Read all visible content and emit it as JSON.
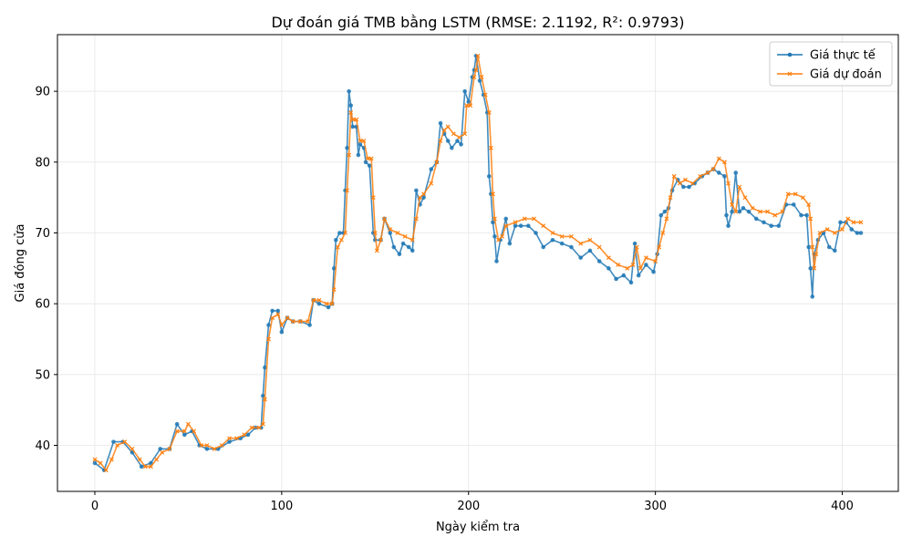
{
  "chart_data": {
    "type": "line",
    "title": "Dự đoán giá TMB bằng LSTM (RMSE: 2.1192, R²: 0.9793)",
    "xlabel": "Ngày kiểm tra",
    "ylabel": "Giá đóng cửa",
    "xlim": [
      -20,
      430
    ],
    "ylim": [
      33.5,
      98
    ],
    "xticks": [
      0,
      100,
      200,
      300,
      400
    ],
    "yticks": [
      40,
      50,
      60,
      70,
      80,
      90
    ],
    "grid": true,
    "legend_position": "top-right",
    "series": [
      {
        "name": "Giá thực tế",
        "color": "#1f77b4",
        "marker": "circle",
        "points": [
          [
            0,
            37.5
          ],
          [
            5,
            36.5
          ],
          [
            10,
            40.5
          ],
          [
            15,
            40.5
          ],
          [
            20,
            39
          ],
          [
            25,
            37
          ],
          [
            30,
            37.5
          ],
          [
            35,
            39.5
          ],
          [
            40,
            39.5
          ],
          [
            44,
            43
          ],
          [
            48,
            41.5
          ],
          [
            52,
            42
          ],
          [
            56,
            40
          ],
          [
            60,
            39.5
          ],
          [
            66,
            39.5
          ],
          [
            72,
            40.5
          ],
          [
            78,
            41
          ],
          [
            82,
            41.5
          ],
          [
            86,
            42.5
          ],
          [
            89,
            42.5
          ],
          [
            90,
            47
          ],
          [
            91,
            51
          ],
          [
            93,
            57
          ],
          [
            95,
            59
          ],
          [
            98,
            59
          ],
          [
            100,
            56
          ],
          [
            103,
            58
          ],
          [
            106,
            57.5
          ],
          [
            110,
            57.5
          ],
          [
            115,
            57
          ],
          [
            117,
            60.5
          ],
          [
            120,
            60
          ],
          [
            125,
            59.5
          ],
          [
            127,
            60
          ],
          [
            128,
            65
          ],
          [
            129,
            69
          ],
          [
            131,
            70
          ],
          [
            133,
            70
          ],
          [
            134,
            76
          ],
          [
            135,
            82
          ],
          [
            136,
            90
          ],
          [
            137,
            88
          ],
          [
            138,
            85
          ],
          [
            140,
            85
          ],
          [
            141,
            81
          ],
          [
            142,
            82.5
          ],
          [
            144,
            82
          ],
          [
            145,
            80
          ],
          [
            147,
            79.5
          ],
          [
            149,
            70
          ],
          [
            150,
            69
          ],
          [
            153,
            69
          ],
          [
            155,
            72
          ],
          [
            158,
            70
          ],
          [
            160,
            68
          ],
          [
            163,
            67
          ],
          [
            165,
            68.5
          ],
          [
            168,
            68
          ],
          [
            170,
            67.5
          ],
          [
            172,
            76
          ],
          [
            174,
            74
          ],
          [
            176,
            75
          ],
          [
            180,
            79
          ],
          [
            183,
            80
          ],
          [
            185,
            85.5
          ],
          [
            187,
            84
          ],
          [
            189,
            83
          ],
          [
            191,
            82
          ],
          [
            194,
            83
          ],
          [
            196,
            82.5
          ],
          [
            198,
            90
          ],
          [
            200,
            88.5
          ],
          [
            202,
            92
          ],
          [
            203,
            93
          ],
          [
            204,
            95
          ],
          [
            206,
            91.5
          ],
          [
            208,
            89.5
          ],
          [
            210,
            87
          ],
          [
            211,
            78
          ],
          [
            212,
            75.5
          ],
          [
            213,
            71.5
          ],
          [
            214,
            69.5
          ],
          [
            215,
            66
          ],
          [
            217,
            69
          ],
          [
            220,
            72
          ],
          [
            222,
            68.5
          ],
          [
            225,
            71
          ],
          [
            228,
            71
          ],
          [
            232,
            71
          ],
          [
            236,
            70
          ],
          [
            240,
            68
          ],
          [
            245,
            69
          ],
          [
            250,
            68.5
          ],
          [
            255,
            68
          ],
          [
            260,
            66.5
          ],
          [
            265,
            67.5
          ],
          [
            270,
            66
          ],
          [
            275,
            65
          ],
          [
            279,
            63.5
          ],
          [
            283,
            64
          ],
          [
            287,
            63
          ],
          [
            289,
            68.5
          ],
          [
            291,
            64
          ],
          [
            295,
            65.5
          ],
          [
            299,
            64.5
          ],
          [
            301,
            67
          ],
          [
            303,
            72.5
          ],
          [
            305,
            73
          ],
          [
            307,
            73.5
          ],
          [
            309,
            76
          ],
          [
            312,
            77.5
          ],
          [
            315,
            76.5
          ],
          [
            318,
            76.5
          ],
          [
            321,
            77
          ],
          [
            325,
            78
          ],
          [
            328,
            78.5
          ],
          [
            331,
            79
          ],
          [
            334,
            78.5
          ],
          [
            337,
            78
          ],
          [
            338,
            72.5
          ],
          [
            339,
            71
          ],
          [
            341,
            73
          ],
          [
            343,
            78.5
          ],
          [
            345,
            73
          ],
          [
            347,
            73.5
          ],
          [
            350,
            73
          ],
          [
            354,
            72
          ],
          [
            358,
            71.5
          ],
          [
            362,
            71
          ],
          [
            366,
            71
          ],
          [
            370,
            74
          ],
          [
            374,
            74
          ],
          [
            378,
            72.5
          ],
          [
            381,
            72.5
          ],
          [
            382,
            68
          ],
          [
            383,
            65
          ],
          [
            384,
            61
          ],
          [
            385,
            67
          ],
          [
            387,
            69
          ],
          [
            390,
            70
          ],
          [
            393,
            68
          ],
          [
            396,
            67.5
          ],
          [
            399,
            71.5
          ],
          [
            402,
            71.5
          ],
          [
            405,
            70.5
          ],
          [
            408,
            70
          ],
          [
            410,
            70
          ]
        ]
      },
      {
        "name": "Giá dự đoán",
        "color": "#ff7f0e",
        "marker": "x",
        "points": [
          [
            0,
            38
          ],
          [
            3,
            37.5
          ],
          [
            6,
            36.5
          ],
          [
            9,
            38
          ],
          [
            12,
            40
          ],
          [
            16,
            40.5
          ],
          [
            20,
            39.5
          ],
          [
            24,
            38
          ],
          [
            27,
            37
          ],
          [
            30,
            37
          ],
          [
            33,
            38
          ],
          [
            36,
            39
          ],
          [
            40,
            39.5
          ],
          [
            44,
            42
          ],
          [
            48,
            42
          ],
          [
            50,
            43
          ],
          [
            53,
            42
          ],
          [
            57,
            40
          ],
          [
            60,
            40
          ],
          [
            64,
            39.5
          ],
          [
            68,
            40
          ],
          [
            72,
            41
          ],
          [
            76,
            41
          ],
          [
            80,
            41.5
          ],
          [
            84,
            42.5
          ],
          [
            88,
            42.5
          ],
          [
            90,
            43
          ],
          [
            91,
            46.5
          ],
          [
            93,
            55
          ],
          [
            95,
            58
          ],
          [
            98,
            58.5
          ],
          [
            100,
            57
          ],
          [
            103,
            58
          ],
          [
            106,
            57.5
          ],
          [
            110,
            57.5
          ],
          [
            114,
            57.5
          ],
          [
            117,
            60.5
          ],
          [
            120,
            60.5
          ],
          [
            124,
            60
          ],
          [
            127,
            60
          ],
          [
            128,
            62
          ],
          [
            130,
            68
          ],
          [
            132,
            69
          ],
          [
            134,
            70
          ],
          [
            135,
            76
          ],
          [
            136,
            81
          ],
          [
            137,
            87
          ],
          [
            138,
            86
          ],
          [
            140,
            86
          ],
          [
            142,
            83
          ],
          [
            144,
            83
          ],
          [
            146,
            80.5
          ],
          [
            148,
            80.5
          ],
          [
            149,
            75
          ],
          [
            150,
            70
          ],
          [
            151,
            67.5
          ],
          [
            153,
            69
          ],
          [
            155,
            72
          ],
          [
            158,
            70.5
          ],
          [
            162,
            70
          ],
          [
            166,
            69.5
          ],
          [
            170,
            69
          ],
          [
            172,
            72
          ],
          [
            174,
            75
          ],
          [
            176,
            75.5
          ],
          [
            180,
            77
          ],
          [
            183,
            80
          ],
          [
            185,
            83
          ],
          [
            187,
            84.5
          ],
          [
            189,
            85
          ],
          [
            192,
            84
          ],
          [
            195,
            83.5
          ],
          [
            198,
            84
          ],
          [
            199,
            88
          ],
          [
            201,
            88
          ],
          [
            203,
            92
          ],
          [
            204,
            93
          ],
          [
            205,
            95
          ],
          [
            207,
            92
          ],
          [
            209,
            89.5
          ],
          [
            211,
            87
          ],
          [
            212,
            82
          ],
          [
            213,
            75.5
          ],
          [
            214,
            72
          ],
          [
            216,
            69
          ],
          [
            218,
            69.5
          ],
          [
            220,
            71
          ],
          [
            225,
            71.5
          ],
          [
            230,
            72
          ],
          [
            235,
            72
          ],
          [
            240,
            71
          ],
          [
            245,
            70
          ],
          [
            250,
            69.5
          ],
          [
            255,
            69.5
          ],
          [
            260,
            68.5
          ],
          [
            265,
            69
          ],
          [
            270,
            68
          ],
          [
            275,
            66.5
          ],
          [
            280,
            65.5
          ],
          [
            285,
            65
          ],
          [
            288,
            65.5
          ],
          [
            290,
            68
          ],
          [
            292,
            65
          ],
          [
            295,
            66.5
          ],
          [
            300,
            66
          ],
          [
            302,
            68
          ],
          [
            304,
            70
          ],
          [
            306,
            72
          ],
          [
            308,
            75
          ],
          [
            310,
            78
          ],
          [
            313,
            77
          ],
          [
            316,
            77.5
          ],
          [
            320,
            77
          ],
          [
            324,
            78
          ],
          [
            328,
            78.5
          ],
          [
            331,
            79
          ],
          [
            334,
            80.5
          ],
          [
            337,
            80
          ],
          [
            339,
            77
          ],
          [
            341,
            74
          ],
          [
            343,
            73
          ],
          [
            345,
            76.5
          ],
          [
            348,
            75
          ],
          [
            352,
            73.5
          ],
          [
            356,
            73
          ],
          [
            360,
            73
          ],
          [
            364,
            72.5
          ],
          [
            368,
            73
          ],
          [
            371,
            75.5
          ],
          [
            375,
            75.5
          ],
          [
            379,
            75
          ],
          [
            382,
            74
          ],
          [
            383,
            72
          ],
          [
            384,
            68
          ],
          [
            385,
            65
          ],
          [
            386,
            67
          ],
          [
            388,
            70
          ],
          [
            392,
            70.5
          ],
          [
            396,
            70
          ],
          [
            400,
            70.5
          ],
          [
            403,
            72
          ],
          [
            406,
            71.5
          ],
          [
            410,
            71.5
          ]
        ]
      }
    ]
  }
}
